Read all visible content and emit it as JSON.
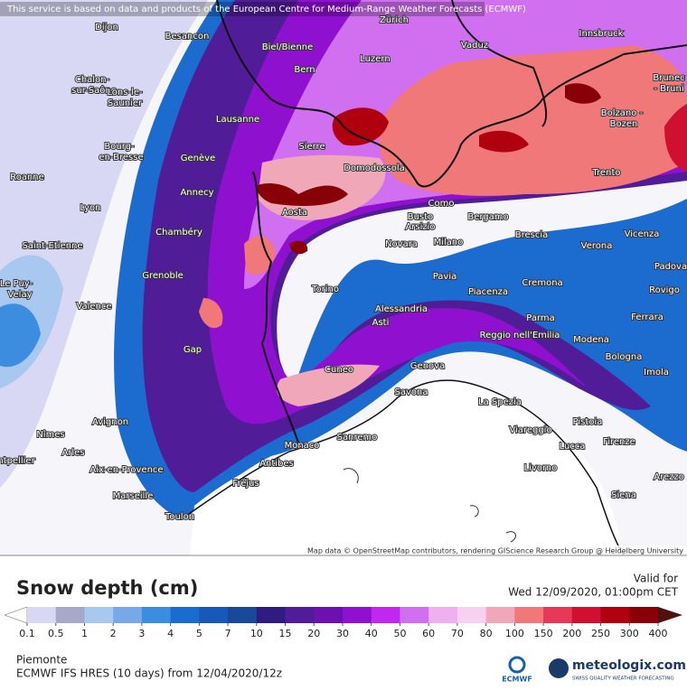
{
  "notice": "This service is based on data and products of the European Centre for Medium-Range Weather Forecasts (ECMWF)",
  "attribution": "Map data © OpenStreetMap contributors, rendering GIScience Research Group @ Heidelberg University",
  "cities": [
    "Dijon",
    "Besancon",
    "Zürich",
    "Vaduz",
    "Innsbruck",
    "Biel/Bienne",
    "Luzern",
    "Bern",
    "Chalon-",
    "sur-Saône",
    "Lons-le-",
    "Saunier",
    "Lausanne",
    "Sierre",
    "Domodossola",
    "Bourg-",
    "en-Bresse",
    "Genève",
    "Roanne",
    "Annecy",
    "Lyon",
    "Aosta",
    "Como",
    "Busto",
    "Arsizio",
    "Bergamo",
    "Brescia",
    "Verona",
    "Vicenza",
    "Padova",
    "Chambéry",
    "Novara",
    "Milano",
    "Saint-Etienne",
    "Le Puy-",
    "Velay",
    "Grenoble",
    "Pavia",
    "Cremona",
    "Torino",
    "Piacenza",
    "Rovigo",
    "Valence",
    "Alessandria",
    "Asti",
    "Parma",
    "Ferrara",
    "Reggio nell'Emilia",
    "Modena",
    "Gap",
    "Bologna",
    "Genova",
    "Cuneo",
    "Imola",
    "Savona",
    "La Spezia",
    "Pistoia",
    "Avignon",
    "Nîmes",
    "Viareggio",
    "Lucca",
    "Firenze",
    "Arles",
    "Monaco",
    "Sanremo",
    "Antibes",
    "Aix-en-Provence",
    "Livorno",
    "Arezzo",
    "Fréjus",
    "Marseille",
    "Siena",
    "Toulon",
    "ntpellier",
    "Trento",
    "Bolzano -",
    "Bozen",
    "Brunec",
    "- Bruni"
  ],
  "legend": {
    "title": "Snow depth (cm)",
    "ticks": [
      0.1,
      0.5,
      1,
      2,
      3,
      4,
      5,
      7,
      10,
      15,
      20,
      30,
      40,
      50,
      60,
      70,
      80,
      100,
      150,
      200,
      250,
      300,
      400
    ],
    "colors": [
      "#d8d8f4",
      "#a8a8c8",
      "#a8c8f0",
      "#78a8e8",
      "#3c8ce0",
      "#1c6cd0",
      "#1858b8",
      "#184898",
      "#301c80",
      "#501c98",
      "#6c10b0",
      "#9010d0",
      "#c028f0",
      "#d070f0",
      "#f0b0f0",
      "#f8d0f0",
      "#f0a8b8",
      "#f07878",
      "#e83858",
      "#d01030",
      "#b00010",
      "#880008"
    ],
    "under_color": "#ffffff",
    "over_color": "#501010"
  },
  "valid_label": "Valid for",
  "valid_time": "Wed 12/09/2020, 01:00pm CET",
  "region": "Piemonte",
  "model": "ECMWF IFS HRES (10 days) from 12/04/2020/12z",
  "ecmwf_logo": "ECMWF",
  "brand": "meteologix.com",
  "brand_tagline": "SWISS QUALITY WEATHER FORECASTING"
}
